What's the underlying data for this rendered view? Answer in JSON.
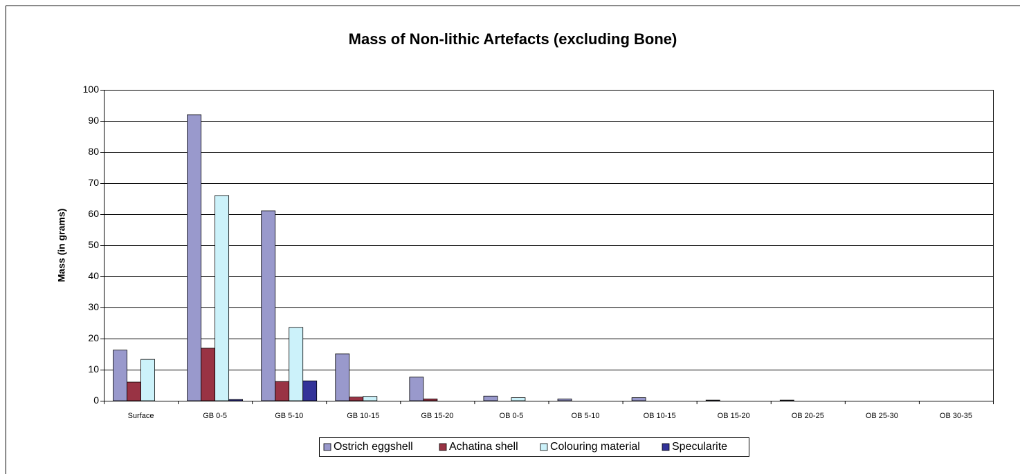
{
  "chart_data": {
    "type": "bar",
    "title": "Mass of Non-lithic Artefacts (excluding Bone)",
    "y_label": "Mass (in grams)",
    "categories": [
      "Surface",
      "GB 0-5",
      "GB 5-10",
      "GB 10-15",
      "GB 15-20",
      "OB 0-5",
      "OB 5-10",
      "OB 10-15",
      "OB 15-20",
      "OB 20-25",
      "OB 25-30",
      "OB 30-35"
    ],
    "series": [
      {
        "name": "Ostrich eggshell",
        "color": "#9999cc",
        "values": [
          16.3,
          92,
          61.1,
          15.1,
          7.6,
          1.5,
          0.6,
          1.0,
          0.2,
          0.2,
          0,
          0
        ]
      },
      {
        "name": "Achatina shell",
        "color": "#993344",
        "values": [
          6,
          16.9,
          6.2,
          1.2,
          0.6,
          0,
          0,
          0,
          0,
          0,
          0,
          0
        ]
      },
      {
        "name": "Colouring material",
        "color": "#ccf2fa",
        "values": [
          13.3,
          66,
          23.6,
          1.4,
          0,
          1.0,
          0,
          0,
          0,
          0,
          0,
          0
        ]
      },
      {
        "name": "Specularite",
        "color": "#333399",
        "values": [
          0,
          0.4,
          6.4,
          0,
          0,
          0,
          0,
          0,
          0,
          0,
          0,
          0
        ]
      }
    ],
    "ylim": [
      0,
      100
    ],
    "yticks": [
      0,
      10,
      20,
      30,
      40,
      50,
      60,
      70,
      80,
      90,
      100
    ],
    "grid": true,
    "legend": "bottom"
  }
}
